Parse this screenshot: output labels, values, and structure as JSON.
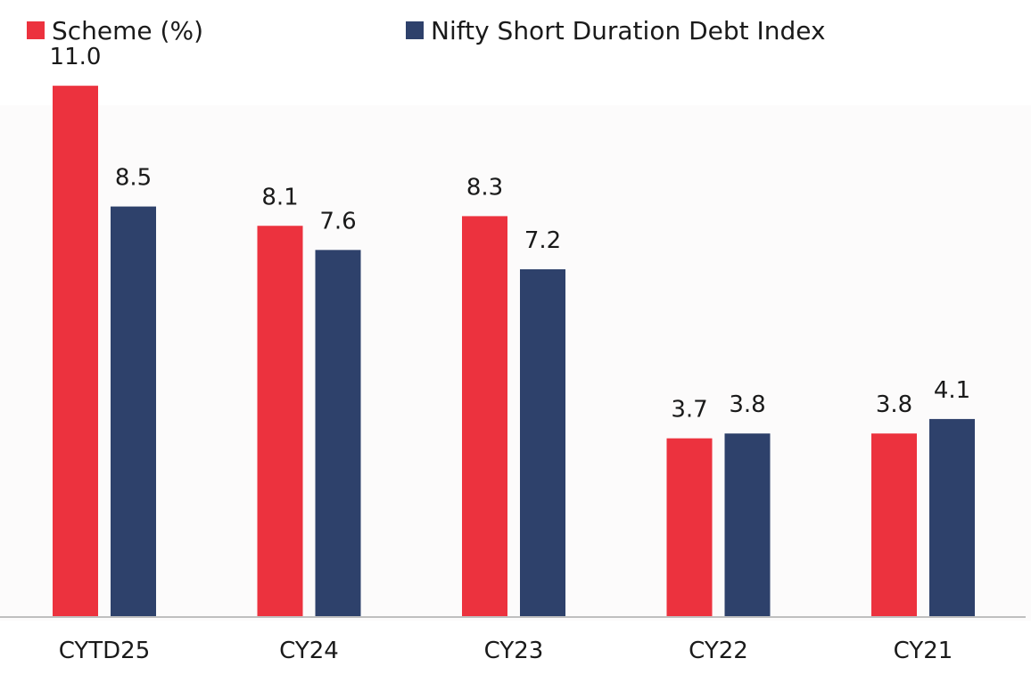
{
  "chart_data": {
    "type": "bar",
    "categories": [
      "CYTD25",
      "CY24",
      "CY23",
      "CY22",
      "CY21"
    ],
    "series": [
      {
        "name": "Scheme (%)",
        "color": "#ec323e",
        "values": [
          11.0,
          8.1,
          8.3,
          3.7,
          3.8
        ],
        "labels": [
          "11.0",
          "8.1",
          "8.3",
          "3.7",
          "3.8"
        ]
      },
      {
        "name": "Nifty Short Duration Debt Index",
        "color": "#2e416b",
        "values": [
          8.5,
          7.6,
          7.2,
          3.8,
          4.1
        ],
        "labels": [
          "8.5",
          "7.6",
          "7.2",
          "3.8",
          "4.1"
        ]
      }
    ],
    "ylim": [
      0,
      12
    ],
    "grid": false,
    "legend_position": "top-left"
  }
}
